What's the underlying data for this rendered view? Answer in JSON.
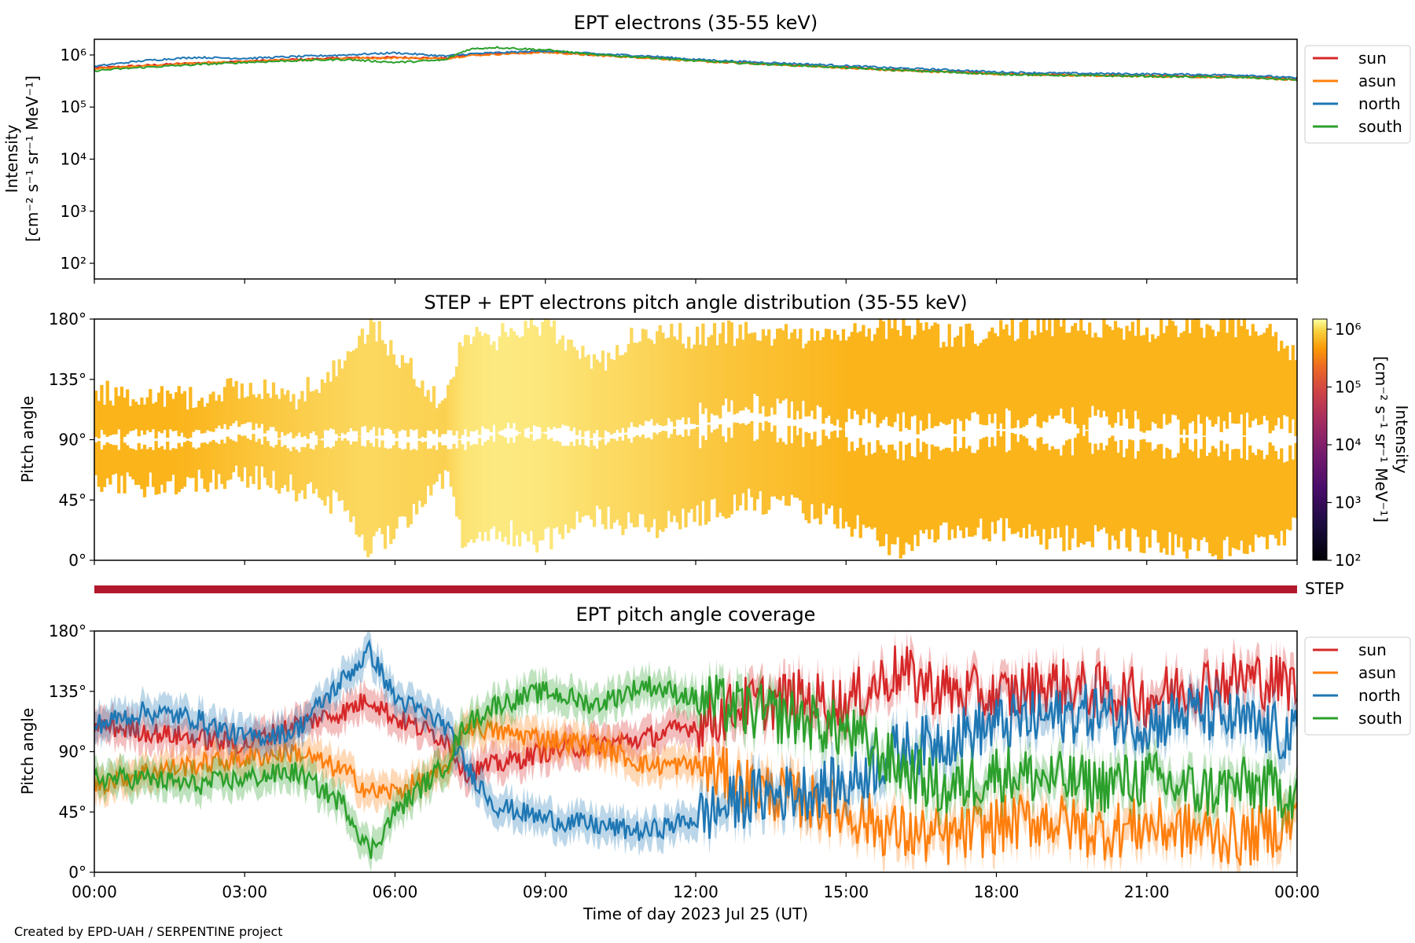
{
  "footer": "Created by EPD-UAH / SERPENTINE project",
  "time_ticks": [
    "00:00",
    "03:00",
    "06:00",
    "09:00",
    "12:00",
    "15:00",
    "18:00",
    "21:00",
    "00:00"
  ],
  "chart_data": [
    {
      "type": "line",
      "title": "EPT electrons (35-55 keV)",
      "ylabel_line1": "Intensity",
      "ylabel_line2": "[cm⁻² s⁻¹ sr⁻¹ MeV⁻¹]",
      "yscale": "log",
      "ylim": [
        50,
        2000000
      ],
      "yticks": [
        100,
        1000,
        10000,
        100000,
        1000000
      ],
      "ytick_labels": [
        "10²",
        "10³",
        "10⁴",
        "10⁵",
        "10⁶"
      ],
      "x_hours": [
        0,
        1,
        2,
        3,
        4,
        5,
        6,
        7,
        7.5,
        8,
        9,
        10,
        11,
        12,
        13,
        14,
        15,
        16,
        17,
        18,
        19,
        20,
        21,
        22,
        23,
        24
      ],
      "legend": "upper-right-outside",
      "series": [
        {
          "name": "sun",
          "color": "#d62728",
          "values": [
            560000,
            630000,
            700000,
            760000,
            820000,
            880000,
            900000,
            870000,
            1000000,
            1050000,
            1150000,
            1000000,
            900000,
            780000,
            700000,
            640000,
            580000,
            520000,
            480000,
            440000,
            420000,
            410000,
            400000,
            390000,
            380000,
            340000
          ]
        },
        {
          "name": "asun",
          "color": "#ff7f0e",
          "values": [
            540000,
            610000,
            690000,
            740000,
            800000,
            860000,
            880000,
            850000,
            980000,
            1030000,
            1120000,
            980000,
            880000,
            760000,
            690000,
            630000,
            560000,
            500000,
            470000,
            430000,
            410000,
            400000,
            390000,
            380000,
            370000,
            330000
          ]
        },
        {
          "name": "north",
          "color": "#1f77b4",
          "values": [
            600000,
            780000,
            900000,
            860000,
            930000,
            1000000,
            1100000,
            950000,
            1050000,
            1100000,
            1200000,
            1050000,
            960000,
            820000,
            740000,
            680000,
            620000,
            560000,
            520000,
            470000,
            450000,
            440000,
            430000,
            420000,
            410000,
            360000
          ]
        },
        {
          "name": "south",
          "color": "#2ca02c",
          "values": [
            500000,
            580000,
            650000,
            720000,
            780000,
            820000,
            720000,
            800000,
            1300000,
            1400000,
            1250000,
            1000000,
            900000,
            770000,
            690000,
            630000,
            570000,
            510000,
            470000,
            430000,
            410000,
            400000,
            390000,
            380000,
            370000,
            330000
          ]
        }
      ]
    },
    {
      "type": "heatmap",
      "title": "STEP + EPT electrons pitch angle distribution (35-55 keV)",
      "ylabel": "Pitch angle",
      "ylim": [
        0,
        180
      ],
      "yticks": [
        0,
        45,
        90,
        135,
        180
      ],
      "ytick_labels": [
        "0°",
        "45°",
        "90°",
        "135°",
        "180°"
      ],
      "colorbar": {
        "label_line1": "Intensity",
        "label_line2": "[cm⁻² s⁻¹ sr⁻¹ MeV⁻¹]",
        "scale": "log",
        "range": [
          100,
          1500000
        ],
        "ticks": [
          100,
          1000,
          10000,
          100000,
          1000000
        ],
        "tick_labels": [
          "10²",
          "10³",
          "10⁴",
          "10⁵",
          "10⁶"
        ],
        "colormap": "inferno"
      },
      "coverage_series": [
        {
          "x_hours": [
            0,
            2,
            3,
            4,
            5,
            5.5,
            6,
            7,
            7.4,
            8,
            9,
            10,
            11,
            12,
            13,
            14,
            15,
            16,
            17,
            18,
            19,
            20,
            21,
            22,
            23,
            24
          ],
          "lower": [
            50,
            55,
            60,
            50,
            35,
            5,
            20,
            60,
            5,
            20,
            10,
            30,
            20,
            30,
            40,
            35,
            25,
            5,
            15,
            20,
            10,
            15,
            10,
            5,
            5,
            20
          ],
          "upper": [
            130,
            125,
            135,
            125,
            150,
            180,
            160,
            120,
            175,
            170,
            180,
            150,
            175,
            170,
            175,
            170,
            170,
            180,
            170,
            175,
            180,
            180,
            175,
            180,
            180,
            160
          ],
          "intensity": [
            500000,
            600000,
            700000,
            800000,
            900000,
            950000,
            900000,
            850000,
            1100000,
            1200000,
            1150000,
            1000000,
            900000,
            780000,
            700000,
            640000,
            580000,
            520000,
            480000,
            440000,
            420000,
            410000,
            400000,
            390000,
            380000,
            340000
          ]
        }
      ],
      "strip_label": "STEP",
      "strip_color": "#b2182b"
    },
    {
      "type": "line",
      "title": "EPT pitch angle coverage",
      "ylabel": "Pitch angle",
      "xlabel": "Time of day 2023 Jul 25 (UT)",
      "ylim": [
        0,
        180
      ],
      "yticks": [
        0,
        45,
        90,
        135,
        180
      ],
      "ytick_labels": [
        "0°",
        "45°",
        "90°",
        "135°",
        "180°"
      ],
      "legend": "upper-right-outside",
      "x_hours": [
        0,
        1,
        2,
        3,
        4,
        5,
        5.5,
        6,
        7,
        7.4,
        8,
        9,
        10,
        11,
        12,
        13,
        14,
        15,
        16,
        17,
        18,
        19,
        20,
        21,
        22,
        23,
        24
      ],
      "series": [
        {
          "name": "sun",
          "color": "#d62728",
          "values": [
            110,
            105,
            100,
            95,
            110,
            120,
            130,
            115,
            100,
            75,
            80,
            90,
            95,
            100,
            110,
            125,
            130,
            125,
            150,
            135,
            130,
            140,
            135,
            130,
            140,
            145,
            140
          ]
        },
        {
          "name": "asun",
          "color": "#ff7f0e",
          "values": [
            65,
            75,
            80,
            85,
            90,
            75,
            60,
            60,
            75,
            110,
            105,
            100,
            95,
            80,
            80,
            65,
            55,
            45,
            30,
            25,
            35,
            40,
            30,
            35,
            30,
            25,
            40
          ]
        },
        {
          "name": "north",
          "color": "#1f77b4",
          "values": [
            110,
            120,
            115,
            100,
            105,
            145,
            165,
            130,
            110,
            80,
            50,
            40,
            35,
            30,
            40,
            55,
            60,
            65,
            90,
            100,
            110,
            115,
            120,
            110,
            120,
            110,
            100
          ]
        },
        {
          "name": "south",
          "color": "#2ca02c",
          "values": [
            70,
            70,
            65,
            70,
            75,
            50,
            15,
            45,
            80,
            110,
            125,
            135,
            125,
            140,
            130,
            120,
            115,
            105,
            80,
            60,
            75,
            70,
            65,
            70,
            60,
            65,
            60
          ]
        }
      ]
    }
  ]
}
